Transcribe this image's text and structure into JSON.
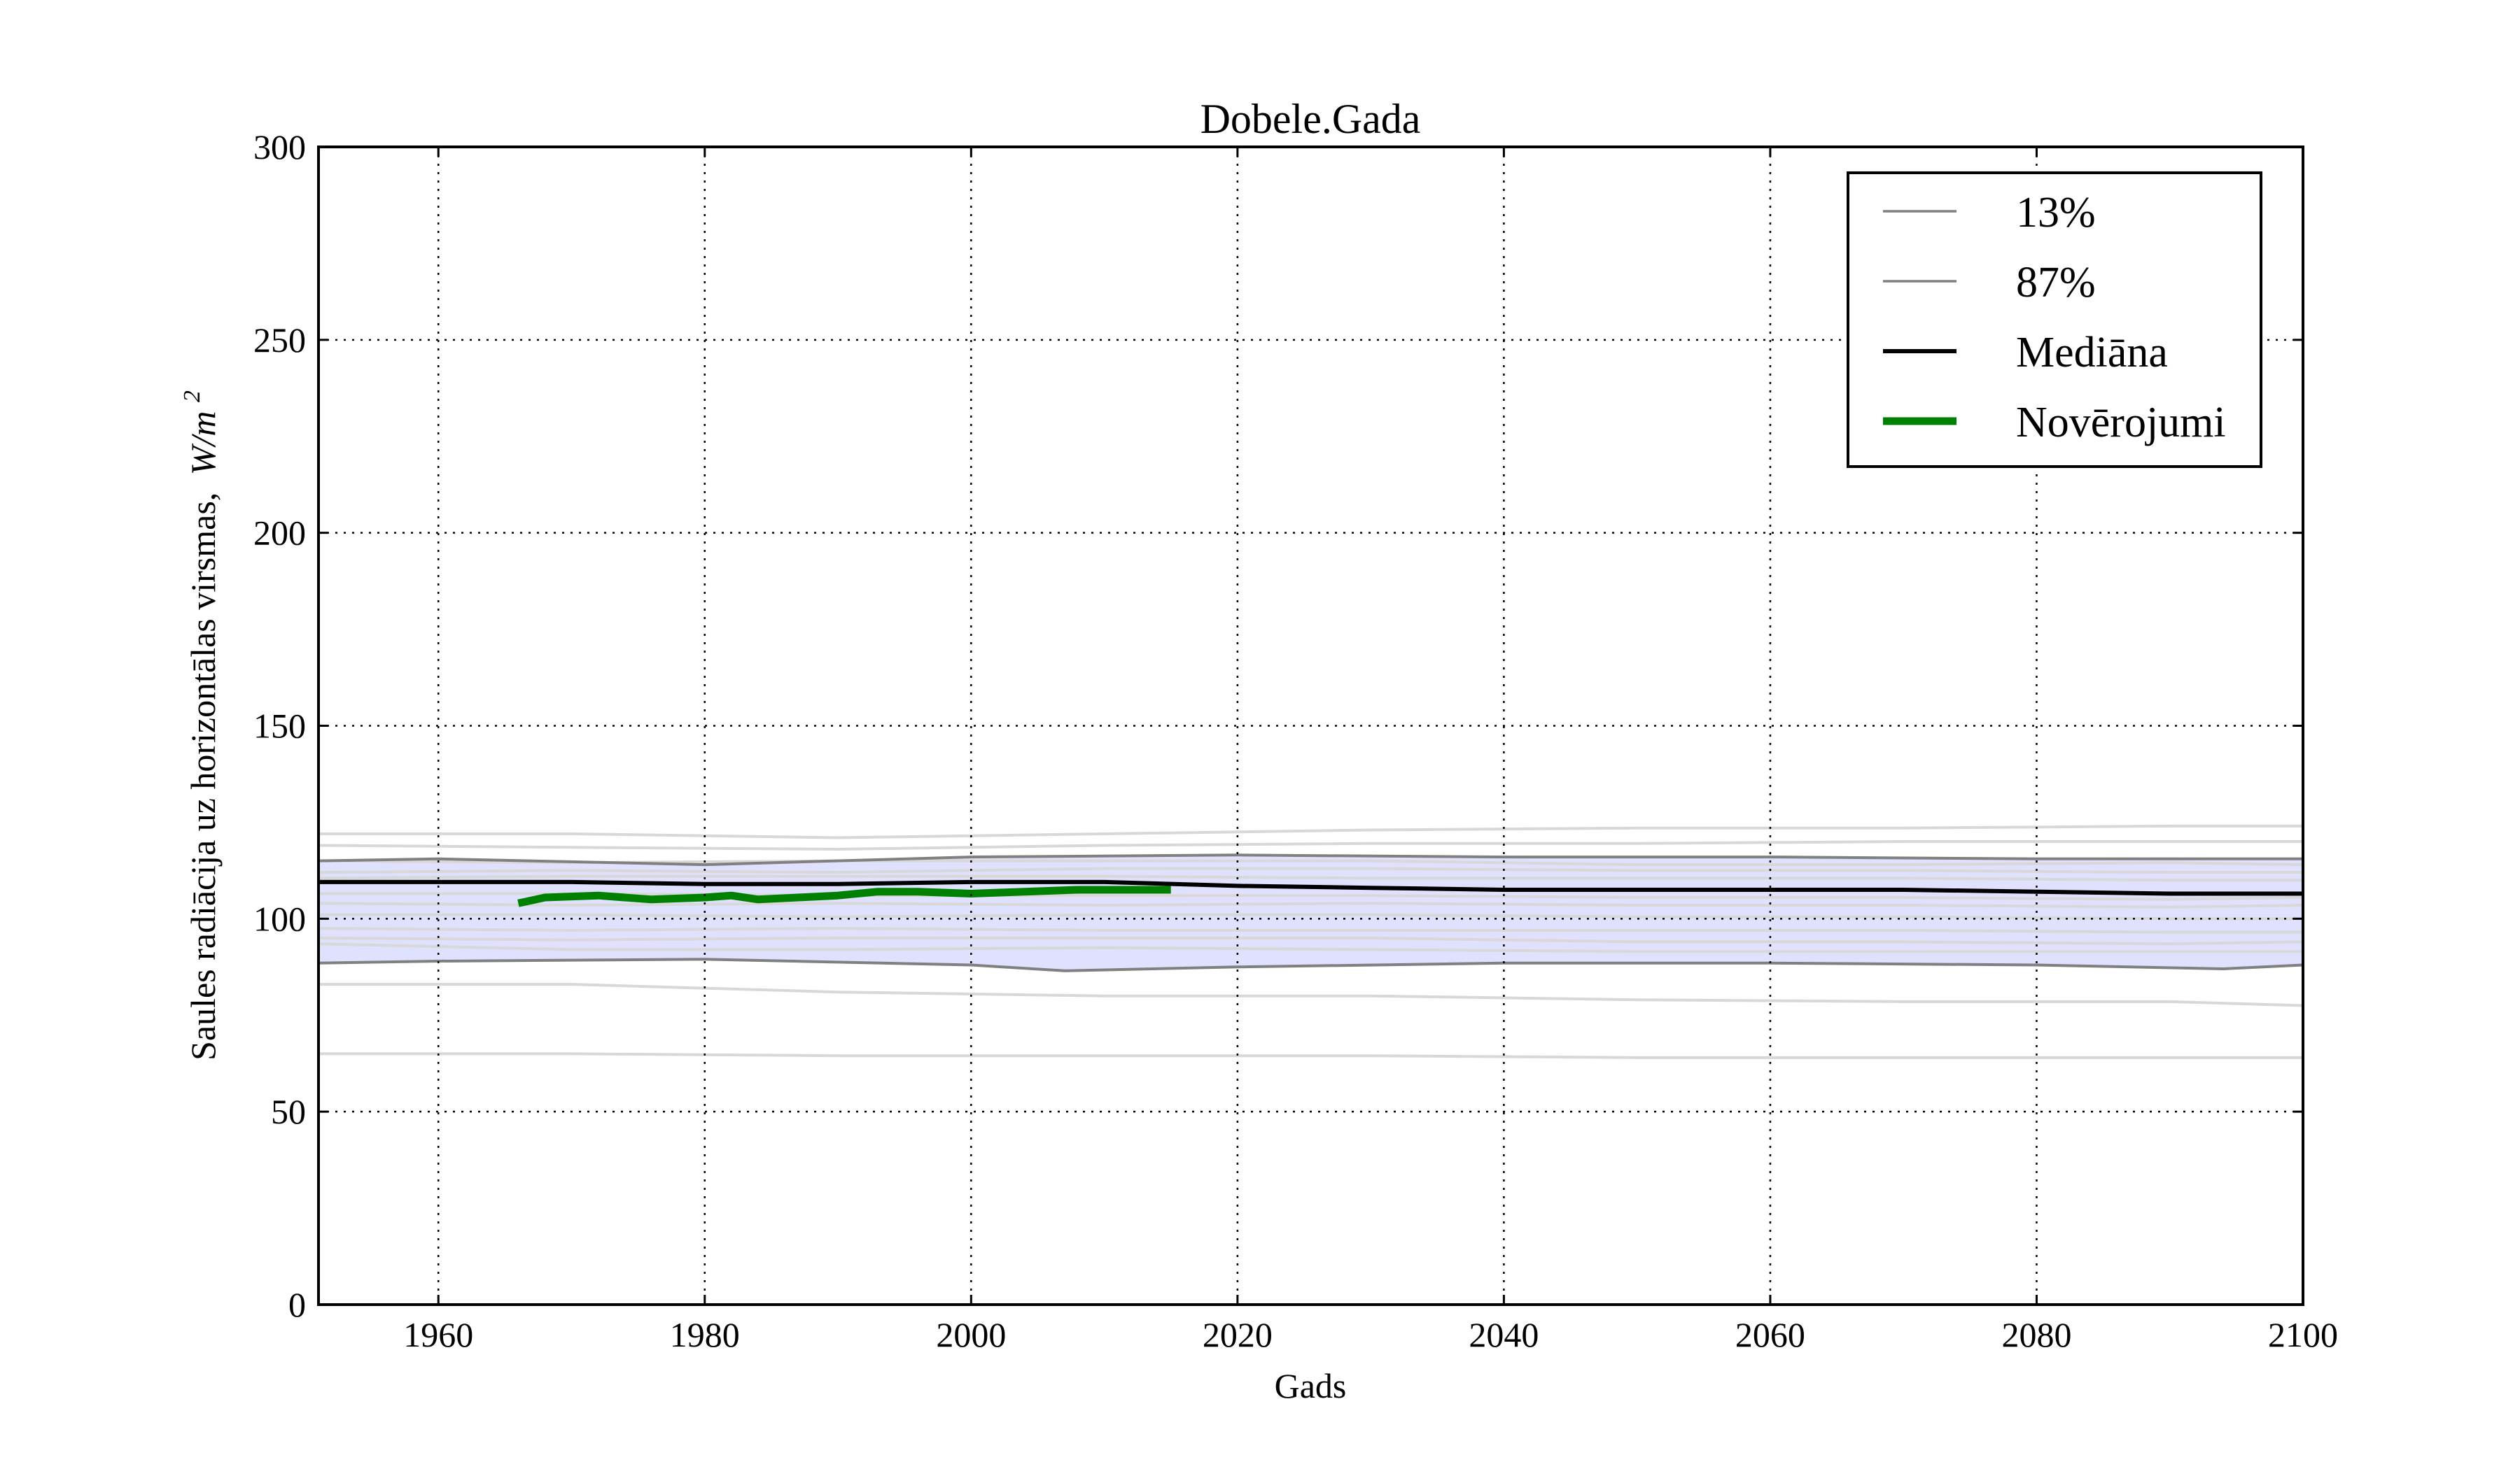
{
  "chart_data": {
    "type": "line",
    "title": "Dobele.Gada",
    "xlabel": "Gads",
    "ylabel": "Saules radiācija uz horizontālas virsmas,",
    "ylabel_unit": "W/m",
    "ylabel_unit_sup": "2",
    "xlim": [
      1951,
      2100
    ],
    "ylim": [
      0,
      300
    ],
    "xticks": [
      1960,
      1980,
      2000,
      2020,
      2040,
      2060,
      2080,
      2100
    ],
    "yticks": [
      0,
      50,
      100,
      150,
      200,
      250,
      300
    ],
    "grid": true,
    "legend_position": "top-right",
    "legend": [
      {
        "label": "13%",
        "color": "#808080",
        "style": "thin"
      },
      {
        "label": "87%",
        "color": "#808080",
        "style": "thin"
      },
      {
        "label": "Mediāna",
        "color": "#000000",
        "style": "medium"
      },
      {
        "label": "Novērojumi",
        "color": "#008000",
        "style": "thick"
      }
    ],
    "band": {
      "color": "#e0e0ff",
      "lower": {
        "x": [
          1951,
          1960,
          1980,
          2000,
          2007,
          2020,
          2040,
          2060,
          2080,
          2094,
          2100
        ],
        "y": [
          88.5,
          89,
          89.5,
          88,
          86.5,
          87.5,
          88.5,
          88.5,
          88,
          87,
          88
        ]
      },
      "upper": {
        "x": [
          1951,
          1960,
          1980,
          2000,
          2020,
          2040,
          2060,
          2080,
          2100
        ],
        "y": [
          115,
          115.5,
          114,
          116,
          116.5,
          116,
          116,
          115.5,
          115.5
        ]
      }
    },
    "series": [
      {
        "name": "13%",
        "color": "#808080",
        "width": 4,
        "x": [
          1951,
          1960,
          1980,
          2000,
          2007,
          2020,
          2040,
          2060,
          2080,
          2094,
          2100
        ],
        "y": [
          88.5,
          89,
          89.5,
          88,
          86.5,
          87.5,
          88.5,
          88.5,
          88,
          87,
          88
        ]
      },
      {
        "name": "87%",
        "color": "#808080",
        "width": 4,
        "x": [
          1951,
          1960,
          1980,
          2000,
          2020,
          2040,
          2060,
          2080,
          2100
        ],
        "y": [
          115,
          115.5,
          114,
          116,
          116.5,
          116,
          116,
          115.5,
          115.5
        ]
      },
      {
        "name": "Mediāna",
        "color": "#000000",
        "width": 6,
        "x": [
          1951,
          1960,
          1970,
          1980,
          1990,
          2000,
          2010,
          2020,
          2030,
          2040,
          2050,
          2060,
          2070,
          2080,
          2090,
          2100
        ],
        "y": [
          109.5,
          109.5,
          109.5,
          109,
          109,
          109.5,
          109.5,
          108.5,
          108,
          107.5,
          107.5,
          107.5,
          107.5,
          107,
          106.5,
          106.5
        ]
      },
      {
        "name": "Novērojumi",
        "color": "#008000",
        "width": 11,
        "x": [
          1966,
          1968,
          1972,
          1976,
          1980,
          1982,
          1984,
          1987,
          1990,
          1993,
          1996,
          2000,
          2004,
          2008,
          2012,
          2015
        ],
        "y": [
          104,
          105.5,
          106,
          105,
          105.5,
          106,
          105,
          105.5,
          106,
          107,
          107,
          106.5,
          107,
          107.5,
          107.5,
          107.5
        ]
      }
    ],
    "background_lines": {
      "color": "#d8d8d8",
      "width": 4,
      "x": [
        1951,
        1970,
        1990,
        2010,
        2030,
        2050,
        2070,
        2090,
        2100
      ],
      "lines": [
        [
          122,
          122,
          121,
          122,
          123,
          123.5,
          123.5,
          124,
          124
        ],
        [
          119,
          118.5,
          118,
          119,
          119.5,
          119.5,
          120,
          120,
          120
        ],
        [
          115,
          114.5,
          115,
          115,
          115,
          114,
          114,
          114.5,
          114
        ],
        [
          112,
          112.5,
          112,
          113,
          113,
          112.5,
          112.5,
          112,
          112
        ],
        [
          110.5,
          111,
          111,
          111,
          110.5,
          110.5,
          110.5,
          110,
          110
        ],
        [
          106.5,
          106.5,
          106,
          106,
          106,
          105.5,
          105.5,
          105,
          105.5
        ],
        [
          104,
          103.5,
          104,
          103.5,
          104,
          103.5,
          103.5,
          103,
          103.5
        ],
        [
          101,
          101,
          100.5,
          101,
          101,
          100.5,
          100.5,
          100,
          100
        ],
        [
          97.5,
          97,
          97.5,
          97,
          97,
          97,
          97,
          96.5,
          96.5
        ],
        [
          95,
          94.5,
          95,
          95,
          95,
          94,
          94,
          93.5,
          94
        ],
        [
          93.5,
          92,
          92,
          92.5,
          92,
          91.5,
          91.5,
          91.5,
          91.5
        ],
        [
          83,
          83,
          81,
          80,
          80,
          79,
          78.5,
          78.5,
          77.5
        ],
        [
          65,
          65,
          64.5,
          64.5,
          64.5,
          64,
          64,
          64,
          64
        ]
      ]
    }
  }
}
